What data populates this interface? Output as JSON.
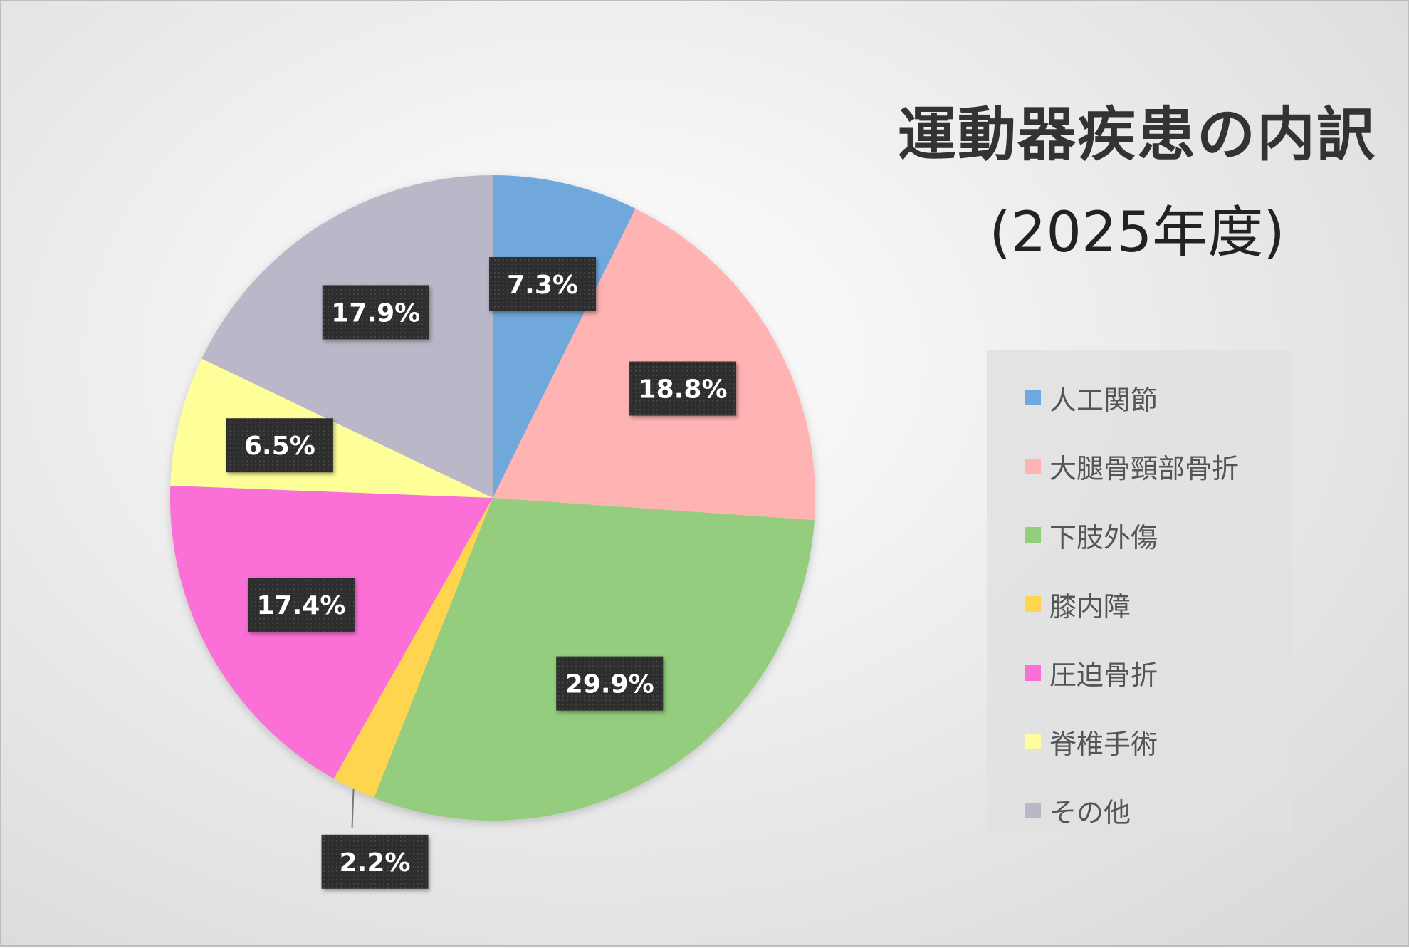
{
  "chart_data": {
    "type": "pie",
    "title": "運動器疾患の内訳",
    "subtitle": "(2025年度)",
    "legend_position": "right",
    "categories": [
      "人工関節",
      "大腿骨頸部骨折",
      "下肢外傷",
      "膝内障",
      "圧迫骨折",
      "脊椎手術",
      "その他"
    ],
    "values": [
      7.3,
      18.8,
      29.9,
      2.2,
      17.4,
      6.5,
      17.9
    ],
    "data_labels": [
      "7.3%",
      "18.8%",
      "29.9%",
      "2.2%",
      "17.4%",
      "6.5%",
      "17.9%"
    ],
    "colors": [
      "#6FA8DC",
      "#FFB3B3",
      "#93CD7D",
      "#FFD54F",
      "#FA6FD6",
      "#FFFF99",
      "#BAB8C8"
    ],
    "start_angle_deg": 0,
    "direction": "clockwise"
  }
}
